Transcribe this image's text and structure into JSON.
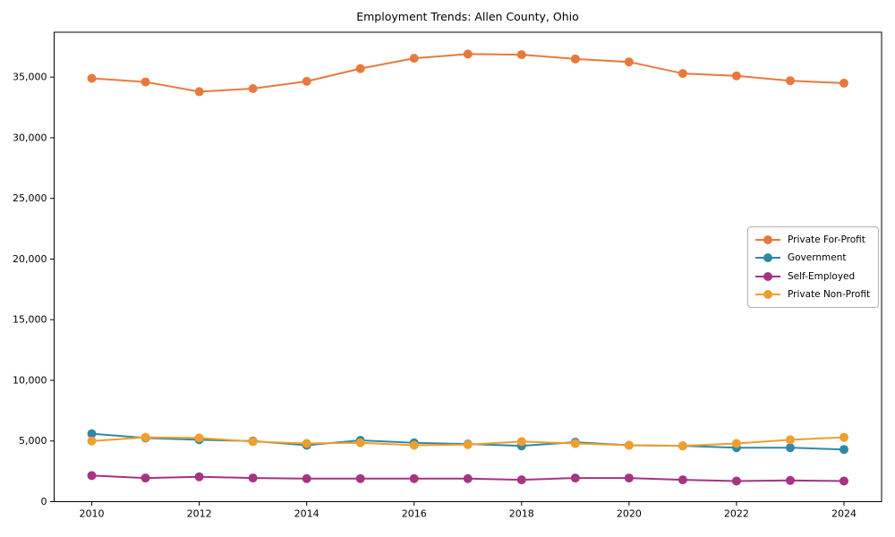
{
  "chart_data": {
    "type": "line",
    "title": "Employment Trends: Allen County, Ohio",
    "x": [
      2010,
      2011,
      2012,
      2013,
      2014,
      2015,
      2016,
      2017,
      2018,
      2019,
      2020,
      2021,
      2022,
      2023,
      2024
    ],
    "series": [
      {
        "name": "Private For-Profit",
        "color": "#e8793e",
        "values": [
          34900,
          34600,
          33800,
          34050,
          34650,
          35700,
          36550,
          36900,
          36850,
          36500,
          36250,
          35300,
          35100,
          34700,
          34500
        ]
      },
      {
        "name": "Government",
        "color": "#2f89a6",
        "values": [
          5600,
          5250,
          5100,
          5000,
          4650,
          5050,
          4850,
          4750,
          4600,
          4900,
          4650,
          4600,
          4450,
          4450,
          4300
        ]
      },
      {
        "name": "Self-Employed",
        "color": "#a63383",
        "values": [
          2150,
          1950,
          2050,
          1950,
          1900,
          1900,
          1900,
          1900,
          1800,
          1950,
          1950,
          1800,
          1700,
          1750,
          1700
        ]
      },
      {
        "name": "Private Non-Profit",
        "color": "#f09e2e",
        "values": [
          5000,
          5300,
          5250,
          4950,
          4800,
          4850,
          4650,
          4700,
          4950,
          4800,
          4650,
          4600,
          4800,
          5100,
          5300
        ]
      }
    ],
    "xlabel": "",
    "ylabel": "",
    "xlim": [
      2009.3,
      2024.7
    ],
    "ylim": [
      0,
      38700
    ],
    "x_ticks": [
      "2010",
      "2012",
      "2014",
      "2016",
      "2018",
      "2020",
      "2022",
      "2024"
    ],
    "x_tick_values": [
      2010,
      2012,
      2014,
      2016,
      2018,
      2020,
      2022,
      2024
    ],
    "y_ticks": [
      "0",
      "5,000",
      "10,000",
      "15,000",
      "20,000",
      "25,000",
      "30,000",
      "35,000"
    ],
    "y_tick_values": [
      0,
      5000,
      10000,
      15000,
      20000,
      25000,
      30000,
      35000
    ],
    "grid": false,
    "legend_position": "center right",
    "background_color": "#ffffff",
    "frame_color": "#000000"
  }
}
